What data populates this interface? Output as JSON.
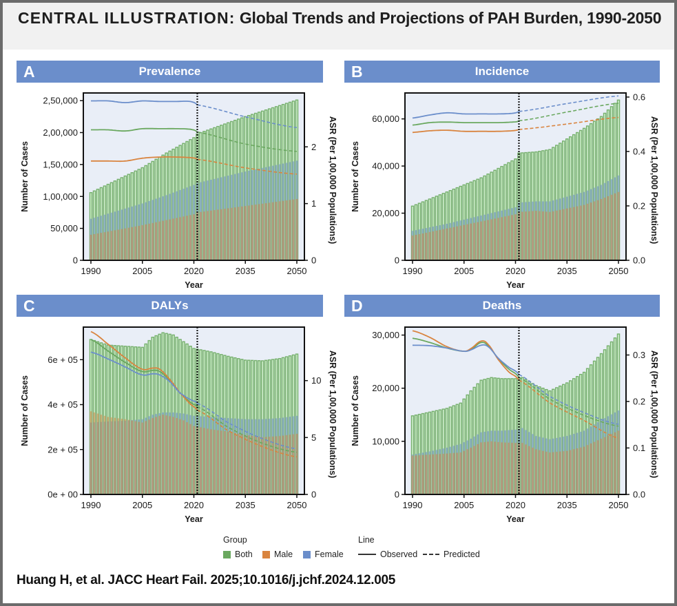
{
  "figure": {
    "title_kicker": "CENTRAL ILLUSTRATION:",
    "title_main": "Global Trends and Projections of PAH Burden, 1990-2050",
    "citation": "Huang H, et al. JACC Heart Fail. 2025;10.1016/j.jchf.2024.12.005"
  },
  "legend": {
    "group_title": "Group",
    "line_title": "Line",
    "groups": [
      {
        "label": "Both",
        "color": "#6aa85f"
      },
      {
        "label": "Male",
        "color": "#d9843f"
      },
      {
        "label": "Female",
        "color": "#6b8ecb"
      }
    ],
    "lines": [
      {
        "label": "Observed",
        "style": "solid"
      },
      {
        "label": "Predicted",
        "style": "dashed"
      }
    ]
  },
  "colors": {
    "both": "#6aa85f",
    "male": "#d9843f",
    "female": "#6b8ecb",
    "header": "#6b8ecb",
    "plot_bg": "#e9eef7",
    "divider": "#1a1a1a"
  },
  "chart_data": [
    {
      "panel": "A",
      "title": "Prevalence",
      "type": "bar+line",
      "xlabel": "Year",
      "ylabel": "Number of Cases",
      "y2label": "ASR (Per 1,00,000 Populations)",
      "xticks": [
        "1990",
        "2005",
        "2020",
        "2035",
        "2050"
      ],
      "xlim": [
        1990,
        2050
      ],
      "observed_until": 2021,
      "ylim": [
        0,
        262000
      ],
      "yticks": [
        0,
        50000,
        100000,
        150000,
        200000,
        250000
      ],
      "ytick_labels": [
        "0",
        "50,000",
        "1,00,000",
        "1,50,000",
        "2,00,000",
        "2,50,000"
      ],
      "y2lim": [
        0,
        2.95
      ],
      "y2ticks": [
        0,
        1,
        2
      ],
      "y2tick_labels": [
        "0",
        "1",
        "2"
      ],
      "bars": {
        "x": [
          1990,
          2005,
          2012,
          2020,
          2021,
          2035,
          2050
        ],
        "both": [
          106000,
          145000,
          168000,
          192000,
          198000,
          225000,
          251000
        ],
        "female": [
          65000,
          89000,
          102000,
          118000,
          121000,
          139000,
          156000
        ],
        "male": [
          40000,
          55000,
          63000,
          72000,
          75000,
          85000,
          96000
        ]
      },
      "asr": {
        "x": [
          1990,
          1995,
          2000,
          2005,
          2010,
          2015,
          2019,
          2021,
          2035,
          2050
        ],
        "both": [
          2.3,
          2.3,
          2.28,
          2.32,
          2.32,
          2.32,
          2.31,
          2.26,
          2.05,
          1.92
        ],
        "female": [
          2.81,
          2.81,
          2.78,
          2.81,
          2.8,
          2.8,
          2.8,
          2.74,
          2.53,
          2.34
        ],
        "male": [
          1.75,
          1.75,
          1.75,
          1.8,
          1.82,
          1.82,
          1.81,
          1.78,
          1.63,
          1.52
        ]
      }
    },
    {
      "panel": "B",
      "title": "Incidence",
      "type": "bar+line",
      "xlabel": "Year",
      "ylabel": "Number of Cases",
      "y2label": "ASR (Per 1,00,000 Populations)",
      "xticks": [
        "1990",
        "2005",
        "2020",
        "2035",
        "2050"
      ],
      "xlim": [
        1990,
        2050
      ],
      "observed_until": 2021,
      "ylim": [
        0,
        71000
      ],
      "yticks": [
        0,
        20000,
        40000,
        60000
      ],
      "ytick_labels": [
        "0",
        "20,000",
        "40,000",
        "60,000"
      ],
      "y2lim": [
        0,
        0.615
      ],
      "y2ticks": [
        0,
        0.2,
        0.4,
        0.6
      ],
      "y2tick_labels": [
        "0.0",
        "0.2",
        "0.4",
        "0.6"
      ],
      "bars": {
        "x": [
          1990,
          2000,
          2010,
          2020,
          2021,
          2026,
          2030,
          2040,
          2045,
          2050
        ],
        "both": [
          23000,
          29000,
          35000,
          43000,
          45500,
          46000,
          47000,
          56000,
          61000,
          68000
        ],
        "female": [
          12500,
          15500,
          19000,
          22500,
          24500,
          25000,
          25000,
          29000,
          32000,
          36000
        ],
        "male": [
          10500,
          13500,
          16500,
          19500,
          20500,
          21000,
          20500,
          23500,
          26000,
          29000
        ]
      },
      "asr": {
        "x": [
          1990,
          1995,
          2000,
          2005,
          2010,
          2015,
          2019,
          2021,
          2035,
          2050
        ],
        "both": [
          0.497,
          0.506,
          0.508,
          0.506,
          0.506,
          0.506,
          0.508,
          0.513,
          0.545,
          0.577
        ],
        "female": [
          0.523,
          0.534,
          0.542,
          0.538,
          0.538,
          0.538,
          0.54,
          0.547,
          0.576,
          0.604
        ],
        "male": [
          0.47,
          0.476,
          0.478,
          0.474,
          0.474,
          0.474,
          0.476,
          0.481,
          0.501,
          0.525
        ]
      }
    },
    {
      "panel": "C",
      "title": "DALYs",
      "type": "bar+line",
      "xlabel": "Year",
      "ylabel": "Number of Cases",
      "y2label": "ASR (Per 1,00,000 Populations)",
      "xticks": [
        "1990",
        "2005",
        "2020",
        "2035",
        "2050"
      ],
      "xlim": [
        1990,
        2050
      ],
      "observed_until": 2021,
      "ylim": [
        0,
        745000
      ],
      "yticks": [
        0,
        200000,
        400000,
        600000
      ],
      "ytick_labels": [
        "0e + 00",
        "2e + 05",
        "4e + 05",
        "6e + 05"
      ],
      "y2lim": [
        0,
        14.7
      ],
      "y2ticks": [
        0,
        5,
        10
      ],
      "y2tick_labels": [
        "0",
        "5",
        "10"
      ],
      "bars": {
        "x": [
          1990,
          1995,
          2000,
          2005,
          2008,
          2011,
          2014,
          2017,
          2020,
          2025,
          2030,
          2035,
          2040,
          2045,
          2050
        ],
        "both": [
          690000,
          665000,
          660000,
          655000,
          700000,
          720000,
          710000,
          680000,
          650000,
          635000,
          615000,
          598000,
          595000,
          605000,
          625000
        ],
        "female": [
          320000,
          325000,
          328000,
          335000,
          355000,
          365000,
          365000,
          360000,
          350000,
          345000,
          340000,
          335000,
          335000,
          340000,
          350000
        ],
        "male": [
          370000,
          345000,
          335000,
          320000,
          340000,
          355000,
          345000,
          330000,
          305000,
          290000,
          280000,
          265000,
          255000,
          260000,
          270000
        ]
      },
      "asr": {
        "x": [
          1990,
          1995,
          2000,
          2005,
          2008,
          2010,
          2013,
          2016,
          2020,
          2021,
          2030,
          2040,
          2050
        ],
        "both": [
          13.6,
          12.6,
          11.6,
          10.8,
          10.9,
          10.8,
          10.0,
          8.9,
          7.9,
          7.7,
          5.9,
          4.5,
          3.7
        ],
        "female": [
          12.5,
          11.9,
          11.2,
          10.5,
          10.6,
          10.5,
          9.9,
          8.9,
          8.2,
          8.0,
          6.3,
          4.9,
          4.0
        ],
        "male": [
          14.3,
          13.2,
          12.0,
          11.0,
          11.1,
          11.0,
          10.1,
          8.9,
          7.7,
          7.4,
          5.6,
          4.2,
          3.3
        ]
      }
    },
    {
      "panel": "D",
      "title": "Deaths",
      "type": "bar+line",
      "xlabel": "Year",
      "ylabel": "Number of Cases",
      "y2label": "ASR (Per 1,00,000 Populations)",
      "xticks": [
        "1990",
        "2005",
        "2020",
        "2035",
        "2050"
      ],
      "xlim": [
        1990,
        2050
      ],
      "observed_until": 2021,
      "ylim": [
        0,
        31500
      ],
      "yticks": [
        0,
        10000,
        20000,
        30000
      ],
      "ytick_labels": [
        "0",
        "10,000",
        "20,000",
        "30,000"
      ],
      "y2lim": [
        0,
        0.36
      ],
      "y2ticks": [
        0,
        0.1,
        0.2,
        0.3
      ],
      "y2tick_labels": [
        "0.0",
        "0.1",
        "0.2",
        "0.3"
      ],
      "bars": {
        "x": [
          1990,
          1995,
          2000,
          2004,
          2007,
          2010,
          2013,
          2016,
          2020,
          2022,
          2026,
          2030,
          2035,
          2040,
          2045,
          2050
        ],
        "both": [
          14800,
          15500,
          16200,
          17200,
          19500,
          21500,
          22000,
          21800,
          21800,
          22000,
          20500,
          19500,
          21000,
          23000,
          26500,
          30200
        ],
        "female": [
          7500,
          8100,
          8800,
          9500,
          10500,
          11700,
          12000,
          12000,
          12200,
          12500,
          11000,
          10400,
          11000,
          12000,
          14000,
          15800
        ],
        "male": [
          7300,
          7500,
          7700,
          7900,
          8800,
          9800,
          10000,
          9800,
          9700,
          9700,
          8500,
          7900,
          8200,
          9000,
          10500,
          12000
        ]
      },
      "asr": {
        "x": [
          1990,
          1995,
          2000,
          2005,
          2007,
          2010,
          2012,
          2015,
          2018,
          2021,
          2030,
          2040,
          2050
        ],
        "both": [
          0.336,
          0.327,
          0.315,
          0.308,
          0.312,
          0.327,
          0.32,
          0.292,
          0.27,
          0.252,
          0.205,
          0.17,
          0.147
        ],
        "female": [
          0.321,
          0.32,
          0.315,
          0.308,
          0.311,
          0.321,
          0.318,
          0.293,
          0.274,
          0.258,
          0.211,
          0.176,
          0.151
        ],
        "male": [
          0.352,
          0.338,
          0.318,
          0.308,
          0.314,
          0.33,
          0.323,
          0.29,
          0.264,
          0.246,
          0.197,
          0.159,
          0.121
        ]
      }
    }
  ]
}
